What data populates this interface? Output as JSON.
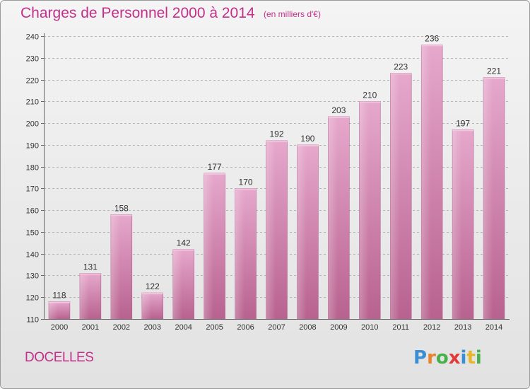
{
  "header": {
    "title": "Charges de Personnel 2000 à 2014",
    "subtitle": "(en milliers d'€)"
  },
  "footer": {
    "commune": "DOCELLES",
    "logo_letters": [
      "P",
      "r",
      "o",
      "x",
      "i",
      "t",
      "i"
    ],
    "logo_colors": [
      "#3a8fd4",
      "#e8832a",
      "#47b04a",
      "#e23a3a",
      "#3a8fd4",
      "#e8b52a",
      "#47b04a"
    ]
  },
  "chart_data": {
    "type": "bar",
    "title": "Charges de Personnel 2000 à 2014",
    "subtitle": "(en milliers d'€)",
    "categories": [
      "2000",
      "2001",
      "2002",
      "2003",
      "2004",
      "2005",
      "2006",
      "2007",
      "2008",
      "2009",
      "2010",
      "2011",
      "2012",
      "2013",
      "2014"
    ],
    "values": [
      118,
      131,
      158,
      122,
      142,
      177,
      170,
      192,
      190,
      203,
      210,
      223,
      236,
      197,
      221
    ],
    "ylim": [
      110,
      240
    ],
    "yticks": [
      110,
      120,
      130,
      140,
      150,
      160,
      170,
      180,
      190,
      200,
      210,
      220,
      230,
      240
    ],
    "grid": true,
    "bar_color": "#d98cb8",
    "title_color": "#c2308a"
  }
}
